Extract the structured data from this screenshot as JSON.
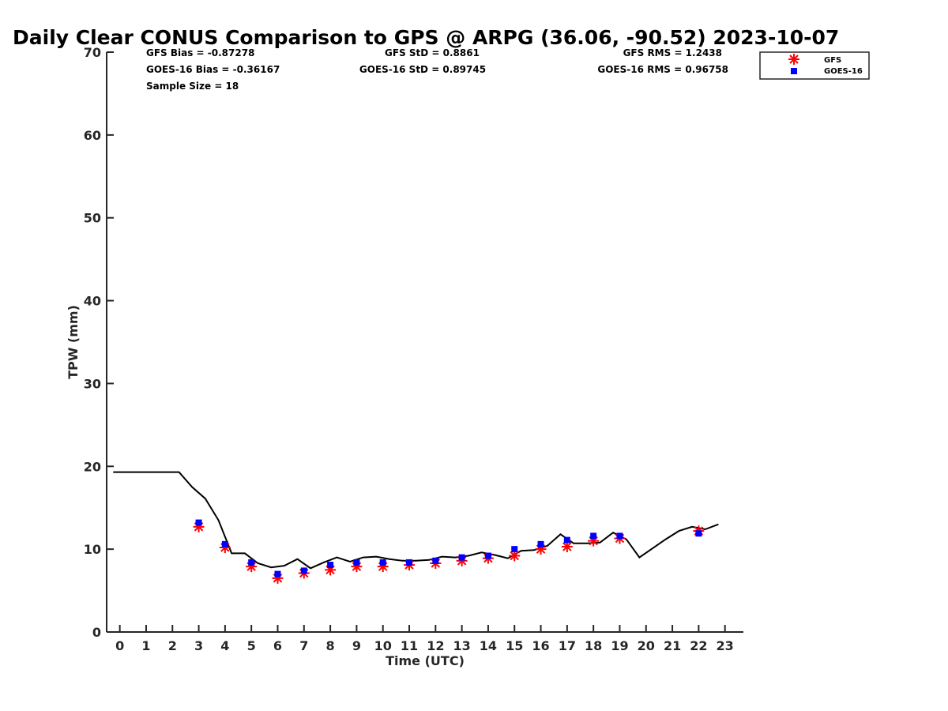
{
  "chart_data": {
    "type": "scatter",
    "title": "Daily Clear CONUS Comparison to GPS @ ARPG (36.06, -90.52) 2023-10-07",
    "xlabel": "Time (UTC)",
    "ylabel": "TPW (mm)",
    "xlim": [
      -0.5,
      23.7
    ],
    "ylim": [
      0,
      70
    ],
    "x_ticks": [
      "0",
      "1",
      "2",
      "3",
      "4",
      "5",
      "6",
      "7",
      "8",
      "9",
      "10",
      "11",
      "12",
      "13",
      "14",
      "15",
      "16",
      "17",
      "18",
      "19",
      "20",
      "21",
      "22",
      "23"
    ],
    "y_ticks": [
      "0",
      "10",
      "20",
      "30",
      "40",
      "50",
      "60",
      "70"
    ],
    "stats": {
      "gfs_bias": "GFS Bias = -0.87278",
      "goes_bias": "GOES-16 Bias = -0.36167",
      "sample_size": "Sample Size = 18",
      "gfs_std": "GFS StD = 0.8861",
      "goes_std": "GOES-16 StD = 0.89745",
      "gfs_rms": "GFS RMS = 1.2438",
      "goes_rms": "GOES-16 RMS = 0.96758"
    },
    "legend_position": "top-right",
    "series": [
      {
        "name": "GFS",
        "marker": "asterisk",
        "color": "#ff0000",
        "points": [
          [
            3,
            12.7
          ],
          [
            4,
            10.2
          ],
          [
            5,
            7.9
          ],
          [
            6,
            6.5
          ],
          [
            7,
            7.1
          ],
          [
            8,
            7.5
          ],
          [
            9,
            7.9
          ],
          [
            10,
            7.9
          ],
          [
            11,
            8.1
          ],
          [
            12,
            8.3
          ],
          [
            13,
            8.6
          ],
          [
            14,
            8.9
          ],
          [
            15,
            9.2
          ],
          [
            16,
            10.0
          ],
          [
            17,
            10.3
          ],
          [
            18,
            11.0
          ],
          [
            19,
            11.3
          ],
          [
            22,
            12.2
          ]
        ]
      },
      {
        "name": "GOES-16",
        "marker": "square",
        "color": "#0000ff",
        "points": [
          [
            3,
            13.2
          ],
          [
            4,
            10.6
          ],
          [
            5,
            8.4
          ],
          [
            6,
            7.0
          ],
          [
            7,
            7.4
          ],
          [
            8,
            8.1
          ],
          [
            9,
            8.4
          ],
          [
            10,
            8.4
          ],
          [
            11,
            8.4
          ],
          [
            12,
            8.6
          ],
          [
            13,
            9.0
          ],
          [
            14,
            9.2
          ],
          [
            15,
            10.0
          ],
          [
            16,
            10.6
          ],
          [
            17,
            11.1
          ],
          [
            18,
            11.6
          ],
          [
            19,
            11.6
          ],
          [
            22,
            11.9
          ]
        ]
      },
      {
        "marker": "line",
        "color": "#000000",
        "points": [
          [
            -0.25,
            19.3
          ],
          [
            0,
            19.3
          ],
          [
            0.5,
            19.3
          ],
          [
            1,
            19.3
          ],
          [
            1.5,
            19.3
          ],
          [
            2,
            19.3
          ],
          [
            2.25,
            19.3
          ],
          [
            2.75,
            17.5
          ],
          [
            3.25,
            16.1
          ],
          [
            3.75,
            13.5
          ],
          [
            4.25,
            9.5
          ],
          [
            4.75,
            9.5
          ],
          [
            5.25,
            8.3
          ],
          [
            5.75,
            7.8
          ],
          [
            6.25,
            8.0
          ],
          [
            6.75,
            8.8
          ],
          [
            7.25,
            7.7
          ],
          [
            7.75,
            8.4
          ],
          [
            8.25,
            9.0
          ],
          [
            8.75,
            8.5
          ],
          [
            9.25,
            9.0
          ],
          [
            9.75,
            9.1
          ],
          [
            10.25,
            8.8
          ],
          [
            10.75,
            8.6
          ],
          [
            11.25,
            8.6
          ],
          [
            11.75,
            8.7
          ],
          [
            12.25,
            9.1
          ],
          [
            12.75,
            9.0
          ],
          [
            13.25,
            9.2
          ],
          [
            13.75,
            9.6
          ],
          [
            14.25,
            9.3
          ],
          [
            14.75,
            8.9
          ],
          [
            15.25,
            9.8
          ],
          [
            15.75,
            9.9
          ],
          [
            16.25,
            10.4
          ],
          [
            16.75,
            11.8
          ],
          [
            17.25,
            10.7
          ],
          [
            17.75,
            10.7
          ],
          [
            18.25,
            10.8
          ],
          [
            18.75,
            12.0
          ],
          [
            19.25,
            11.2
          ],
          [
            19.75,
            9.0
          ],
          [
            20.25,
            10.1
          ],
          [
            20.75,
            11.2
          ],
          [
            21.25,
            12.2
          ],
          [
            21.75,
            12.7
          ],
          [
            22.25,
            12.4
          ],
          [
            22.75,
            13.0
          ]
        ]
      }
    ]
  }
}
